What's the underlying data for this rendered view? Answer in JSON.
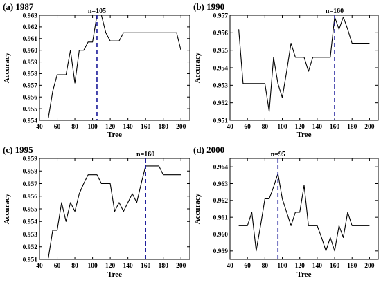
{
  "chart_data": [
    {
      "type": "line",
      "title": "(a) 1987",
      "xlabel": "Tree",
      "ylabel": "Accuracy",
      "xlim": [
        40,
        210
      ],
      "ylim": [
        0.954,
        0.963
      ],
      "xticks": [
        "40",
        "60",
        "80",
        "100",
        "120",
        "140",
        "160",
        "180",
        "200"
      ],
      "yticks": [
        "0.954",
        "0.955",
        "0.956",
        "0.957",
        "0.958",
        "0.959",
        "0.960",
        "0.961",
        "0.962",
        "0.963"
      ],
      "marker_x": 105,
      "marker_label": "n=105",
      "x": [
        50,
        55,
        60,
        65,
        70,
        75,
        80,
        85,
        90,
        95,
        100,
        105,
        110,
        115,
        120,
        125,
        130,
        135,
        140,
        145,
        150,
        155,
        160,
        165,
        170,
        175,
        180,
        185,
        190,
        195,
        200
      ],
      "y": [
        0.9542,
        0.9565,
        0.9579,
        0.9579,
        0.9579,
        0.96,
        0.9572,
        0.96,
        0.96,
        0.9607,
        0.9607,
        0.963,
        0.963,
        0.9615,
        0.9608,
        0.9608,
        0.9608,
        0.9615,
        0.9615,
        0.9615,
        0.9615,
        0.9615,
        0.9615,
        0.9615,
        0.9615,
        0.9615,
        0.9615,
        0.9615,
        0.9615,
        0.9615,
        0.96
      ]
    },
    {
      "type": "line",
      "title": "(b) 1990",
      "xlabel": "Tree",
      "ylabel": "Accuracy",
      "xlim": [
        40,
        210
      ],
      "ylim": [
        0.951,
        0.957
      ],
      "xticks": [
        "40",
        "60",
        "80",
        "100",
        "120",
        "140",
        "160",
        "180",
        "200"
      ],
      "yticks": [
        "0.951",
        "0.952",
        "0.953",
        "0.954",
        "0.955",
        "0.956",
        "0.957"
      ],
      "marker_x": 160,
      "marker_label": "n=160",
      "x": [
        50,
        55,
        60,
        65,
        70,
        75,
        80,
        85,
        90,
        95,
        100,
        105,
        110,
        115,
        120,
        125,
        130,
        135,
        140,
        145,
        150,
        155,
        160,
        165,
        170,
        175,
        180,
        185,
        190,
        195,
        200
      ],
      "y": [
        0.9562,
        0.9531,
        0.9531,
        0.9531,
        0.9531,
        0.9531,
        0.9531,
        0.9515,
        0.9546,
        0.9531,
        0.9523,
        0.9538,
        0.9554,
        0.9546,
        0.9546,
        0.9546,
        0.9538,
        0.9546,
        0.9546,
        0.9546,
        0.9546,
        0.9546,
        0.9569,
        0.9562,
        0.9569,
        0.9562,
        0.9554,
        0.9554,
        0.9554,
        0.9554,
        0.9554
      ]
    },
    {
      "type": "line",
      "title": "(c) 1995",
      "xlabel": "Tree",
      "ylabel": "Accuracy",
      "xlim": [
        40,
        210
      ],
      "ylim": [
        0.951,
        0.959
      ],
      "xticks": [
        "40",
        "60",
        "80",
        "100",
        "120",
        "140",
        "160",
        "180",
        "200"
      ],
      "yticks": [
        "0.951",
        "0.952",
        "0.953",
        "0.954",
        "0.955",
        "0.956",
        "0.957",
        "0.958",
        "0.959"
      ],
      "marker_x": 160,
      "marker_label": "n=160",
      "x": [
        50,
        55,
        60,
        65,
        70,
        75,
        80,
        85,
        90,
        95,
        100,
        105,
        110,
        115,
        120,
        125,
        130,
        135,
        140,
        145,
        150,
        155,
        160,
        165,
        170,
        175,
        180,
        185,
        190,
        195,
        200
      ],
      "y": [
        0.9511,
        0.9533,
        0.9533,
        0.9555,
        0.954,
        0.9555,
        0.9548,
        0.9562,
        0.957,
        0.9577,
        0.9577,
        0.9577,
        0.957,
        0.957,
        0.957,
        0.9548,
        0.9555,
        0.9548,
        0.9555,
        0.9562,
        0.9555,
        0.957,
        0.9584,
        0.9584,
        0.9584,
        0.9584,
        0.9577,
        0.9577,
        0.9577,
        0.9577,
        0.9577
      ]
    },
    {
      "type": "line",
      "title": "(d) 2000",
      "xlabel": "Tree",
      "ylabel": "Accuracy",
      "xlim": [
        40,
        210
      ],
      "ylim": [
        0.9585,
        0.9645
      ],
      "xticks": [
        "40",
        "60",
        "80",
        "100",
        "120",
        "140",
        "160",
        "180",
        "200"
      ],
      "yticks": [
        "0.959",
        "0.960",
        "0.961",
        "0.962",
        "0.963",
        "0.964"
      ],
      "marker_x": 95,
      "marker_label": "n=95",
      "x": [
        50,
        55,
        60,
        65,
        70,
        75,
        80,
        85,
        90,
        95,
        100,
        105,
        110,
        115,
        120,
        125,
        130,
        135,
        140,
        145,
        150,
        155,
        160,
        165,
        170,
        175,
        180,
        185,
        190,
        195,
        200
      ],
      "y": [
        0.9605,
        0.9605,
        0.9605,
        0.9613,
        0.959,
        0.9605,
        0.9621,
        0.9621,
        0.9628,
        0.9636,
        0.9621,
        0.9613,
        0.9605,
        0.9613,
        0.9613,
        0.9629,
        0.9605,
        0.9605,
        0.9605,
        0.9598,
        0.959,
        0.9598,
        0.959,
        0.9605,
        0.9598,
        0.9613,
        0.9605,
        0.9605,
        0.9605,
        0.9605,
        0.9605
      ]
    }
  ]
}
